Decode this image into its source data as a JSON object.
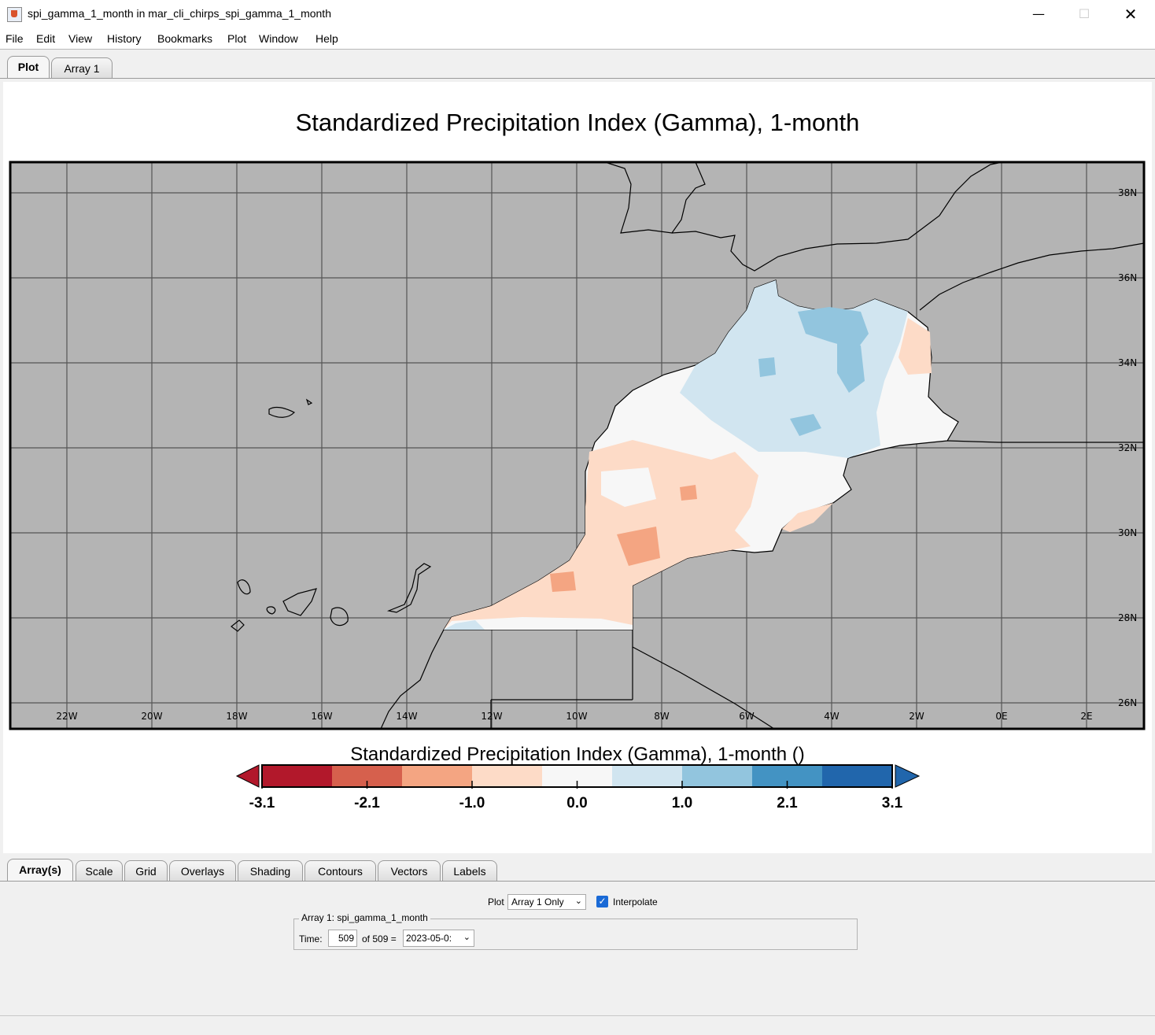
{
  "window": {
    "title": "spi_gamma_1_month in mar_cli_chirps_spi_gamma_1_month",
    "min_glyph": "—",
    "max_glyph": "☐",
    "close_glyph": "✕",
    "app_icon": "java-cup-icon"
  },
  "menu": [
    "File",
    "Edit",
    "View",
    "History",
    "Bookmarks",
    "Plot",
    "Window",
    "Help"
  ],
  "top_tabs": [
    {
      "label": "Plot",
      "active": true
    },
    {
      "label": "Array 1",
      "active": false
    }
  ],
  "plot": {
    "title": "Standardized Precipitation Index (Gamma), 1-month",
    "colorbar_title": "Standardized Precipitation Index (Gamma), 1-month ()",
    "lon_labels": [
      "22W",
      "20W",
      "18W",
      "16W",
      "14W",
      "12W",
      "10W",
      "8W",
      "6W",
      "4W",
      "2W",
      "0E",
      "2E"
    ],
    "lat_labels": [
      "38N",
      "36N",
      "34N",
      "32N",
      "30N",
      "28N",
      "26N"
    ],
    "colorbar_ticks": [
      "-3.1",
      "-2.1",
      "-1.0",
      "0.0",
      "1.0",
      "2.1",
      "3.1"
    ],
    "colors": {
      "ocean": "#b4b4b4",
      "scale": [
        "#b2182b",
        "#d6604d",
        "#f4a582",
        "#fddbc7",
        "#f7f7f7",
        "#d1e5f0",
        "#92c5de",
        "#4393c3",
        "#2166ac"
      ],
      "below": "#b2182b",
      "above": "#2166ac"
    }
  },
  "bottom_tabs": [
    {
      "label": "Array(s)",
      "active": true
    },
    {
      "label": "Scale",
      "active": false
    },
    {
      "label": "Grid",
      "active": false
    },
    {
      "label": "Overlays",
      "active": false
    },
    {
      "label": "Shading",
      "active": false
    },
    {
      "label": "Contours",
      "active": false
    },
    {
      "label": "Vectors",
      "active": false
    },
    {
      "label": "Labels",
      "active": false
    }
  ],
  "controls": {
    "plot_label": "Plot",
    "plot_select_value": "Array 1 Only",
    "interpolate_label": "Interpolate",
    "interpolate_checked": true,
    "array_group_title": "Array 1: spi_gamma_1_month",
    "time_label": "Time:",
    "time_value": "509",
    "time_of": "of 509 =",
    "time_select_value": "2023-05-0:"
  }
}
